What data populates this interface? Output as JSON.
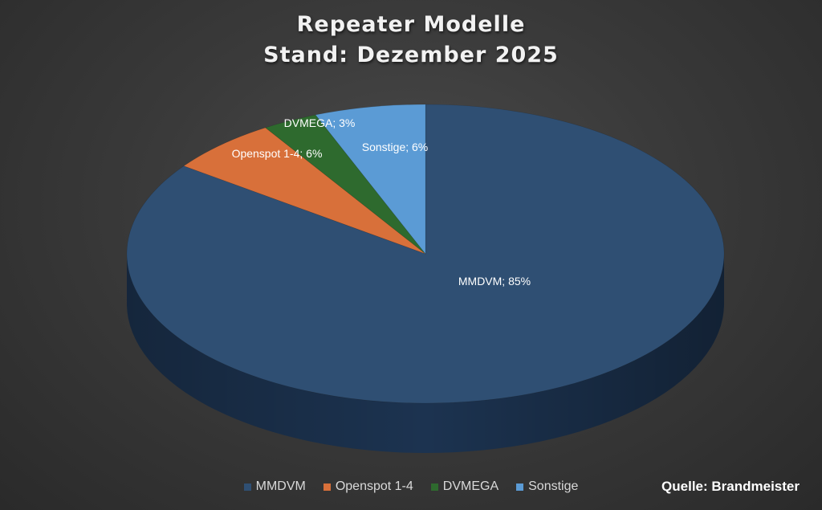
{
  "chart_data": {
    "type": "pie",
    "title_line1": "Repeater Modelle",
    "title_line2": "Stand: Dezember 2025",
    "slices": [
      {
        "name": "MMDVM",
        "value": 85,
        "label": "MMDVM; 85%",
        "color": "#2f4f73",
        "side": "#1c3350"
      },
      {
        "name": "Openspot 1-4",
        "value": 6,
        "label": "Openspot 1-4; 6%",
        "color": "#d8703a",
        "side": "#9c4f25"
      },
      {
        "name": "DVMEGA",
        "value": 3,
        "label": "DVMEGA; 3%",
        "color": "#2e6a2e",
        "side": "#1d4a1d"
      },
      {
        "name": "Sonstige",
        "value": 6,
        "label": "Sonstige; 6%",
        "color": "#5b9bd5",
        "side": "#3f74a6"
      }
    ],
    "legend_placement": "bottom"
  },
  "source_note": "Quelle: Brandmeister"
}
